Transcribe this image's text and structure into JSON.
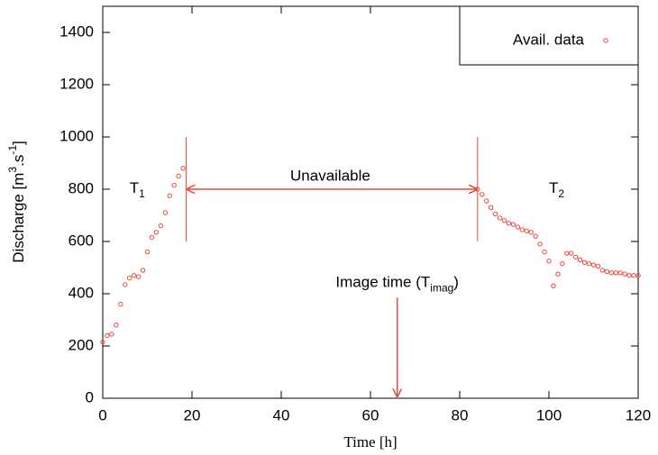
{
  "chart_data": {
    "type": "scatter",
    "x_label": "Time [h]",
    "y_label_parts": [
      "Discharge [m",
      "3",
      ".s",
      "-1",
      "]"
    ],
    "xlim": [
      0,
      120
    ],
    "xticks": [
      0,
      20,
      40,
      60,
      80,
      100,
      120
    ],
    "ylim": [
      0,
      1500
    ],
    "yticks": [
      0,
      200,
      400,
      600,
      800,
      1000,
      1200,
      1400
    ],
    "legend_position": "upper right",
    "series": [
      {
        "name": "Avail. data",
        "color": "#e8483a",
        "x": [
          0,
          1,
          2,
          3,
          4,
          5,
          6,
          7,
          8,
          9,
          10,
          11,
          12,
          13,
          14,
          15,
          16,
          17,
          18,
          84,
          85,
          86,
          87,
          88,
          89,
          90,
          91,
          92,
          93,
          94,
          95,
          96,
          97,
          98,
          99,
          100,
          101,
          102,
          103,
          104,
          105,
          106,
          107,
          108,
          109,
          110,
          111,
          112,
          113,
          114,
          115,
          116,
          117,
          118,
          119,
          120
        ],
        "values": [
          215,
          240,
          245,
          280,
          360,
          435,
          460,
          470,
          465,
          490,
          560,
          615,
          635,
          660,
          710,
          775,
          815,
          850,
          880,
          800,
          780,
          755,
          730,
          705,
          690,
          680,
          670,
          665,
          655,
          645,
          640,
          635,
          620,
          590,
          560,
          525,
          430,
          475,
          515,
          555,
          555,
          540,
          530,
          520,
          515,
          510,
          505,
          490,
          485,
          480,
          480,
          480,
          475,
          470,
          470,
          470
        ]
      }
    ],
    "annotations": {
      "unavailable": "Unavailable",
      "t1": {
        "base": "T",
        "sub": "1"
      },
      "t2": {
        "base": "T",
        "sub": "2"
      },
      "image_time": {
        "base": "Image time (T",
        "sub": "imag",
        "tail": ")"
      }
    }
  }
}
